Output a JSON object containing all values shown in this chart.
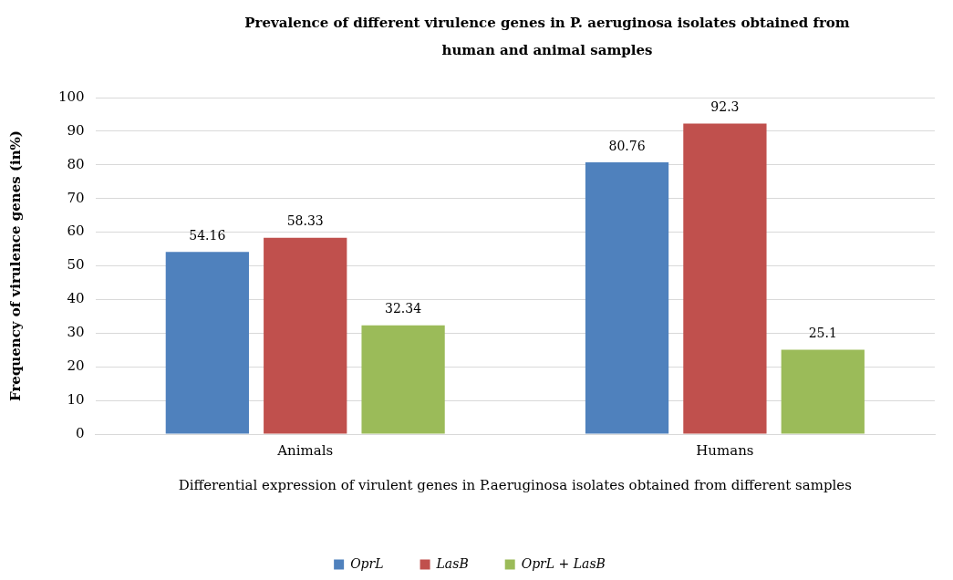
{
  "chart_data": {
    "type": "bar",
    "title": "Prevalence of different virulence genes in P. aeruginosa isolates obtained from human and animal samples",
    "xlabel": "Differential expression of virulent genes in P.aeruginosa isolates obtained from different samples",
    "ylabel": "Frequency of virulence genes (in%)",
    "categories": [
      "Animals",
      "Humans"
    ],
    "series": [
      {
        "name": "OprL",
        "color": "#4f81bd",
        "values": [
          54.16,
          80.76
        ]
      },
      {
        "name": "LasB",
        "color": "#c0504d",
        "values": [
          58.33,
          92.3
        ]
      },
      {
        "name": "OprL + LasB",
        "color": "#9bbb59",
        "values": [
          32.34,
          25.1
        ]
      }
    ],
    "ylim": [
      0,
      100
    ],
    "yticks": [
      0,
      10,
      20,
      30,
      40,
      50,
      60,
      70,
      80,
      90,
      100
    ],
    "grid": "y",
    "legend": "bottom",
    "data_labels": true
  }
}
